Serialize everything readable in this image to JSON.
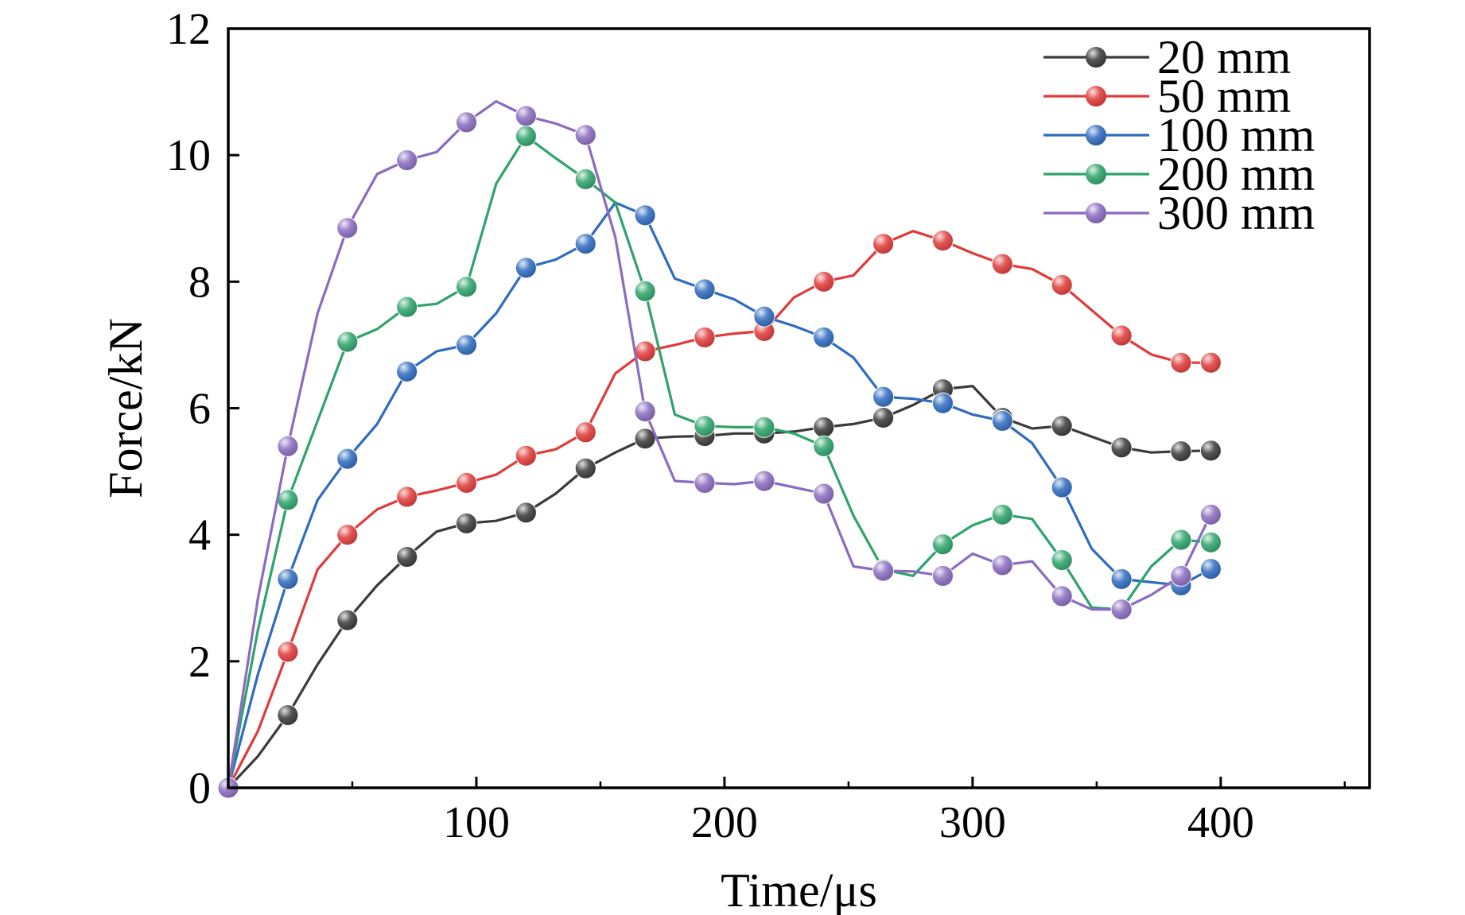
{
  "chart_data": {
    "type": "line",
    "title": "",
    "xlabel": "Time/μs",
    "ylabel": "Force/kN",
    "xlim": [
      0,
      460
    ],
    "ylim": [
      0,
      12
    ],
    "xticks": [
      100,
      200,
      300,
      400
    ],
    "yticks": [
      0,
      2,
      4,
      6,
      8,
      10,
      12
    ],
    "grid": false,
    "legend_position": "top-right",
    "series": [
      {
        "name": "20 mm",
        "color": "#3a3a3a",
        "points": [
          [
            0,
            0
          ],
          [
            12,
            0.5
          ],
          [
            24,
            1.15
          ],
          [
            36,
            1.95
          ],
          [
            48,
            2.65
          ],
          [
            60,
            3.2
          ],
          [
            72,
            3.65
          ],
          [
            84,
            4.05
          ],
          [
            96,
            4.18
          ],
          [
            108,
            4.22
          ],
          [
            120,
            4.35
          ],
          [
            132,
            4.65
          ],
          [
            144,
            5.05
          ],
          [
            156,
            5.3
          ],
          [
            168,
            5.52
          ],
          [
            180,
            5.55
          ],
          [
            192,
            5.56
          ],
          [
            204,
            5.6
          ],
          [
            216,
            5.6
          ],
          [
            228,
            5.63
          ],
          [
            240,
            5.7
          ],
          [
            252,
            5.75
          ],
          [
            264,
            5.85
          ],
          [
            276,
            6.05
          ],
          [
            288,
            6.3
          ],
          [
            300,
            6.35
          ],
          [
            312,
            5.85
          ],
          [
            324,
            5.68
          ],
          [
            336,
            5.72
          ],
          [
            348,
            5.55
          ],
          [
            360,
            5.38
          ],
          [
            372,
            5.3
          ],
          [
            384,
            5.32
          ],
          [
            396,
            5.33
          ]
        ],
        "markers": [
          [
            0,
            0
          ],
          [
            24,
            1.15
          ],
          [
            48,
            2.65
          ],
          [
            72,
            3.65
          ],
          [
            96,
            4.18
          ],
          [
            120,
            4.35
          ],
          [
            144,
            5.05
          ],
          [
            168,
            5.52
          ],
          [
            192,
            5.56
          ],
          [
            216,
            5.6
          ],
          [
            240,
            5.7
          ],
          [
            264,
            5.85
          ],
          [
            288,
            6.3
          ],
          [
            312,
            5.85
          ],
          [
            336,
            5.72
          ],
          [
            360,
            5.38
          ],
          [
            384,
            5.32
          ],
          [
            396,
            5.33
          ]
        ]
      },
      {
        "name": "50 mm",
        "color": "#e03b3b",
        "points": [
          [
            0,
            0
          ],
          [
            12,
            0.9
          ],
          [
            24,
            2.15
          ],
          [
            36,
            3.45
          ],
          [
            48,
            4.0
          ],
          [
            60,
            4.4
          ],
          [
            72,
            4.6
          ],
          [
            84,
            4.7
          ],
          [
            96,
            4.82
          ],
          [
            108,
            4.95
          ],
          [
            120,
            5.25
          ],
          [
            132,
            5.35
          ],
          [
            144,
            5.62
          ],
          [
            156,
            6.55
          ],
          [
            168,
            6.9
          ],
          [
            180,
            7.0
          ],
          [
            192,
            7.12
          ],
          [
            204,
            7.18
          ],
          [
            216,
            7.22
          ],
          [
            228,
            7.75
          ],
          [
            240,
            8.0
          ],
          [
            252,
            8.1
          ],
          [
            264,
            8.6
          ],
          [
            276,
            8.8
          ],
          [
            288,
            8.65
          ],
          [
            300,
            8.45
          ],
          [
            312,
            8.28
          ],
          [
            324,
            8.2
          ],
          [
            336,
            7.95
          ],
          [
            348,
            7.55
          ],
          [
            360,
            7.15
          ],
          [
            372,
            6.85
          ],
          [
            384,
            6.72
          ],
          [
            396,
            6.72
          ]
        ],
        "markers": [
          [
            0,
            0
          ],
          [
            24,
            2.15
          ],
          [
            48,
            4.0
          ],
          [
            72,
            4.6
          ],
          [
            96,
            4.82
          ],
          [
            120,
            5.25
          ],
          [
            144,
            5.62
          ],
          [
            168,
            6.9
          ],
          [
            192,
            7.12
          ],
          [
            216,
            7.22
          ],
          [
            240,
            8.0
          ],
          [
            264,
            8.6
          ],
          [
            288,
            8.65
          ],
          [
            312,
            8.28
          ],
          [
            336,
            7.95
          ],
          [
            360,
            7.15
          ],
          [
            384,
            6.72
          ],
          [
            396,
            6.72
          ]
        ]
      },
      {
        "name": "100 mm",
        "color": "#2f6bbf",
        "points": [
          [
            0,
            0
          ],
          [
            12,
            1.8
          ],
          [
            24,
            3.3
          ],
          [
            36,
            4.55
          ],
          [
            48,
            5.2
          ],
          [
            60,
            5.75
          ],
          [
            72,
            6.58
          ],
          [
            84,
            6.9
          ],
          [
            96,
            7.0
          ],
          [
            108,
            7.5
          ],
          [
            120,
            8.22
          ],
          [
            132,
            8.35
          ],
          [
            144,
            8.6
          ],
          [
            156,
            9.25
          ],
          [
            168,
            9.05
          ],
          [
            180,
            8.05
          ],
          [
            192,
            7.88
          ],
          [
            204,
            7.72
          ],
          [
            216,
            7.45
          ],
          [
            228,
            7.3
          ],
          [
            240,
            7.12
          ],
          [
            252,
            6.8
          ],
          [
            264,
            6.18
          ],
          [
            276,
            6.15
          ],
          [
            288,
            6.08
          ],
          [
            300,
            5.9
          ],
          [
            312,
            5.8
          ],
          [
            324,
            5.45
          ],
          [
            336,
            4.75
          ],
          [
            348,
            3.78
          ],
          [
            360,
            3.3
          ],
          [
            372,
            3.25
          ],
          [
            384,
            3.2
          ],
          [
            396,
            3.46
          ]
        ],
        "markers": [
          [
            0,
            0
          ],
          [
            24,
            3.3
          ],
          [
            48,
            5.2
          ],
          [
            72,
            6.58
          ],
          [
            96,
            7.0
          ],
          [
            120,
            8.22
          ],
          [
            144,
            8.6
          ],
          [
            168,
            9.05
          ],
          [
            192,
            7.88
          ],
          [
            216,
            7.45
          ],
          [
            240,
            7.12
          ],
          [
            264,
            6.18
          ],
          [
            288,
            6.08
          ],
          [
            312,
            5.8
          ],
          [
            336,
            4.75
          ],
          [
            360,
            3.3
          ],
          [
            384,
            3.2
          ],
          [
            396,
            3.46
          ]
        ]
      },
      {
        "name": "200 mm",
        "color": "#2ea36b",
        "points": [
          [
            0,
            0
          ],
          [
            12,
            2.5
          ],
          [
            24,
            4.55
          ],
          [
            36,
            5.8
          ],
          [
            48,
            7.05
          ],
          [
            60,
            7.25
          ],
          [
            72,
            7.6
          ],
          [
            84,
            7.65
          ],
          [
            96,
            7.92
          ],
          [
            108,
            9.55
          ],
          [
            120,
            10.3
          ],
          [
            132,
            9.95
          ],
          [
            144,
            9.62
          ],
          [
            156,
            9.25
          ],
          [
            168,
            7.85
          ],
          [
            180,
            5.9
          ],
          [
            192,
            5.72
          ],
          [
            204,
            5.7
          ],
          [
            216,
            5.7
          ],
          [
            228,
            5.6
          ],
          [
            240,
            5.4
          ],
          [
            252,
            4.3
          ],
          [
            264,
            3.45
          ],
          [
            276,
            3.35
          ],
          [
            288,
            3.85
          ],
          [
            300,
            4.15
          ],
          [
            312,
            4.32
          ],
          [
            324,
            4.25
          ],
          [
            336,
            3.6
          ],
          [
            348,
            2.85
          ],
          [
            360,
            2.82
          ],
          [
            372,
            3.5
          ],
          [
            384,
            3.92
          ],
          [
            396,
            3.88
          ]
        ],
        "markers": [
          [
            0,
            0
          ],
          [
            24,
            4.55
          ],
          [
            48,
            7.05
          ],
          [
            72,
            7.6
          ],
          [
            96,
            7.92
          ],
          [
            120,
            10.3
          ],
          [
            144,
            9.62
          ],
          [
            168,
            7.85
          ],
          [
            192,
            5.72
          ],
          [
            216,
            5.7
          ],
          [
            240,
            5.4
          ],
          [
            264,
            3.45
          ],
          [
            288,
            3.85
          ],
          [
            312,
            4.32
          ],
          [
            336,
            3.6
          ],
          [
            360,
            2.82
          ],
          [
            384,
            3.92
          ],
          [
            396,
            3.88
          ]
        ]
      },
      {
        "name": "300 mm",
        "color": "#8a6bbf",
        "points": [
          [
            0,
            0
          ],
          [
            12,
            3.0
          ],
          [
            24,
            5.4
          ],
          [
            36,
            7.5
          ],
          [
            48,
            8.85
          ],
          [
            60,
            9.7
          ],
          [
            72,
            9.92
          ],
          [
            84,
            10.05
          ],
          [
            96,
            10.52
          ],
          [
            108,
            10.85
          ],
          [
            120,
            10.62
          ],
          [
            132,
            10.5
          ],
          [
            144,
            10.32
          ],
          [
            156,
            8.7
          ],
          [
            168,
            5.95
          ],
          [
            180,
            4.85
          ],
          [
            192,
            4.82
          ],
          [
            204,
            4.8
          ],
          [
            216,
            4.85
          ],
          [
            228,
            4.75
          ],
          [
            240,
            4.65
          ],
          [
            252,
            3.5
          ],
          [
            264,
            3.43
          ],
          [
            276,
            3.42
          ],
          [
            288,
            3.35
          ],
          [
            300,
            3.7
          ],
          [
            312,
            3.52
          ],
          [
            324,
            3.58
          ],
          [
            336,
            3.03
          ],
          [
            348,
            2.82
          ],
          [
            360,
            2.82
          ],
          [
            372,
            3.05
          ],
          [
            384,
            3.35
          ],
          [
            396,
            4.32
          ]
        ],
        "markers": [
          [
            0,
            0
          ],
          [
            24,
            5.4
          ],
          [
            48,
            8.85
          ],
          [
            72,
            9.92
          ],
          [
            96,
            10.52
          ],
          [
            120,
            10.62
          ],
          [
            144,
            10.32
          ],
          [
            168,
            5.95
          ],
          [
            192,
            4.82
          ],
          [
            216,
            4.85
          ],
          [
            240,
            4.65
          ],
          [
            264,
            3.43
          ],
          [
            288,
            3.35
          ],
          [
            312,
            3.52
          ],
          [
            336,
            3.03
          ],
          [
            360,
            2.82
          ],
          [
            384,
            3.35
          ],
          [
            396,
            4.32
          ]
        ]
      }
    ]
  }
}
